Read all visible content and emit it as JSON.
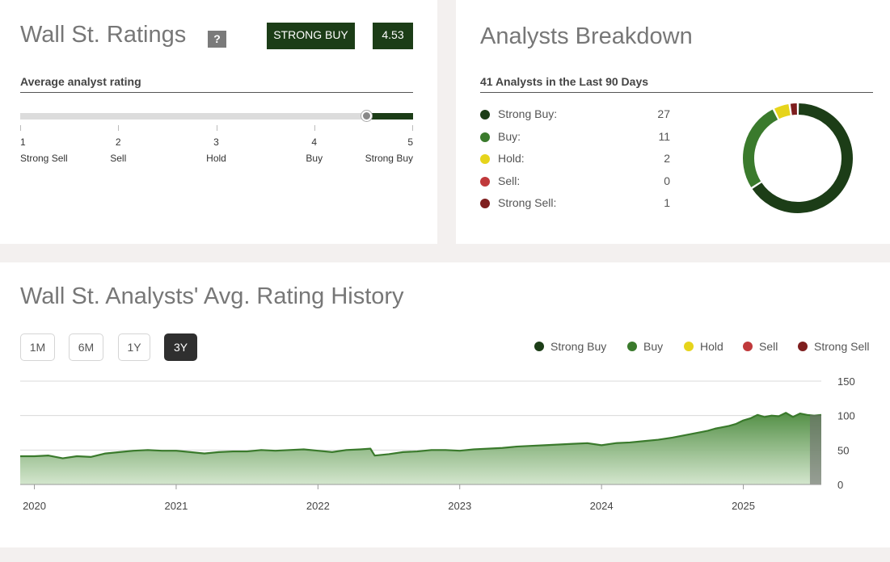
{
  "ratings": {
    "title": "Wall St. Ratings",
    "help_label": "?",
    "badge_label": "STRONG BUY",
    "badge_score": "4.53",
    "score_value": 4.53,
    "subhead": "Average analyst rating",
    "scale": [
      {
        "num": "1",
        "label": "Strong Sell"
      },
      {
        "num": "2",
        "label": "Sell"
      },
      {
        "num": "3",
        "label": "Hold"
      },
      {
        "num": "4",
        "label": "Buy"
      },
      {
        "num": "5",
        "label": "Strong Buy"
      }
    ]
  },
  "breakdown": {
    "title": "Analysts Breakdown",
    "subhead": "41 Analysts in the Last 90 Days",
    "items": [
      {
        "label": "Strong Buy:",
        "count": "27",
        "value": 27,
        "color": "#1c3d17"
      },
      {
        "label": "Buy:",
        "count": "11",
        "value": 11,
        "color": "#3a7a2c"
      },
      {
        "label": "Hold:",
        "count": "2",
        "value": 2,
        "color": "#e6d41b"
      },
      {
        "label": "Sell:",
        "count": "0",
        "value": 0,
        "color": "#c0393b"
      },
      {
        "label": "Strong Sell:",
        "count": "1",
        "value": 1,
        "color": "#7e1e1e"
      }
    ]
  },
  "history": {
    "title": "Wall St. Analysts' Avg. Rating History",
    "ranges": [
      {
        "label": "1M",
        "active": false
      },
      {
        "label": "6M",
        "active": false
      },
      {
        "label": "1Y",
        "active": false
      },
      {
        "label": "3Y",
        "active": true
      }
    ],
    "legend": [
      {
        "label": "Strong Buy",
        "color": "#1c3d17"
      },
      {
        "label": "Buy",
        "color": "#3a7a2c"
      },
      {
        "label": "Hold",
        "color": "#e6d41b"
      },
      {
        "label": "Sell",
        "color": "#c0393b"
      },
      {
        "label": "Strong Sell",
        "color": "#7e1e1e"
      }
    ]
  },
  "chart_data": {
    "type": "area",
    "title": "",
    "xlabel": "",
    "ylabel": "",
    "ylim": [
      0,
      150
    ],
    "yticks": [
      0,
      50,
      100,
      150
    ],
    "xlim": [
      2019.9,
      2025.55
    ],
    "xticks": [
      {
        "x": 2020,
        "label": "2020"
      },
      {
        "x": 2021,
        "label": "2021"
      },
      {
        "x": 2022,
        "label": "2022"
      },
      {
        "x": 2023,
        "label": "2023"
      },
      {
        "x": 2024,
        "label": "2024"
      },
      {
        "x": 2025,
        "label": "2025"
      }
    ],
    "grid": true,
    "series": [
      {
        "color": "#3a7a2c",
        "x": [
          2019.9,
          2020.0,
          2020.1,
          2020.2,
          2020.3,
          2020.4,
          2020.5,
          2020.6,
          2020.7,
          2020.8,
          2020.9,
          2021.0,
          2021.1,
          2021.2,
          2021.3,
          2021.4,
          2021.5,
          2021.6,
          2021.7,
          2021.8,
          2021.9,
          2022.0,
          2022.1,
          2022.2,
          2022.3,
          2022.37,
          2022.4,
          2022.5,
          2022.6,
          2022.7,
          2022.8,
          2022.9,
          2023.0,
          2023.1,
          2023.2,
          2023.3,
          2023.4,
          2023.5,
          2023.6,
          2023.7,
          2023.8,
          2023.9,
          2024.0,
          2024.1,
          2024.2,
          2024.3,
          2024.4,
          2024.5,
          2024.6,
          2024.7,
          2024.75,
          2024.8,
          2024.9,
          2024.95,
          2025.0,
          2025.05,
          2025.1,
          2025.15,
          2025.2,
          2025.25,
          2025.3,
          2025.35,
          2025.4,
          2025.45,
          2025.5,
          2025.55
        ],
        "y": [
          41,
          41,
          42,
          38,
          41,
          40,
          45,
          47,
          49,
          50,
          49,
          49,
          47,
          45,
          47,
          48,
          48,
          50,
          49,
          50,
          51,
          49,
          47,
          50,
          51,
          52,
          42,
          44,
          47,
          48,
          50,
          50,
          49,
          51,
          52,
          53,
          55,
          56,
          57,
          58,
          59,
          60,
          57,
          60,
          61,
          63,
          65,
          68,
          72,
          76,
          78,
          81,
          85,
          88,
          93,
          96,
          101,
          98,
          100,
          99,
          104,
          98,
          103,
          101,
          100,
          101
        ]
      }
    ]
  }
}
